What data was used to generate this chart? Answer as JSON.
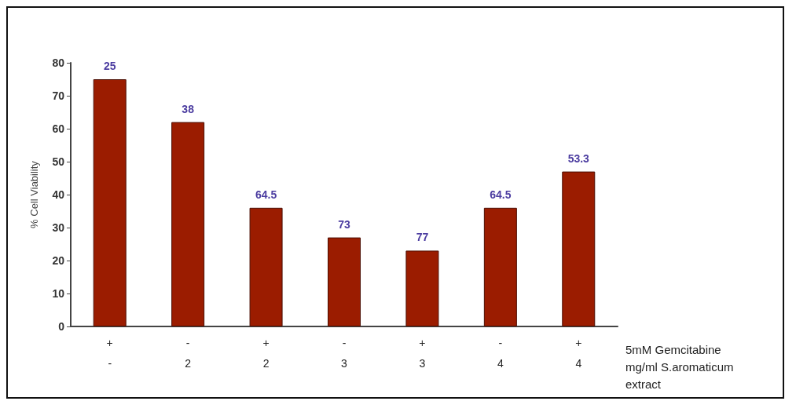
{
  "chart_data": {
    "type": "bar",
    "ylabel": "% Cell Viability",
    "xlabel": "5mM Gemcitabine\nmg/ml S.aromaticum\nextract",
    "categories": [
      "+\n-",
      "-\n2",
      "+\n2",
      "-\n3",
      "+\n3",
      "-\n4",
      "+\n4"
    ],
    "values": [
      75,
      62,
      36,
      27,
      23,
      36,
      47
    ],
    "annotations": [
      {
        "text": "25",
        "x": "+\n-",
        "y": 75
      },
      {
        "text": "38",
        "x": "-\n2",
        "y": 62
      },
      {
        "text": "64.5",
        "x": "+\n2",
        "y": 36
      },
      {
        "text": "73",
        "x": "-\n3",
        "y": 27
      },
      {
        "text": "77",
        "x": "+\n3",
        "y": 23
      },
      {
        "text": "64.5",
        "x": "-\n4",
        "y": 36
      },
      {
        "text": "53.3",
        "x": "+\n4",
        "y": 47
      }
    ],
    "color": "#9b1c00",
    "ylim": [
      0,
      80
    ],
    "yticks": [
      0,
      10,
      20,
      30,
      40,
      50,
      60,
      70,
      80
    ],
    "grid": false
  }
}
